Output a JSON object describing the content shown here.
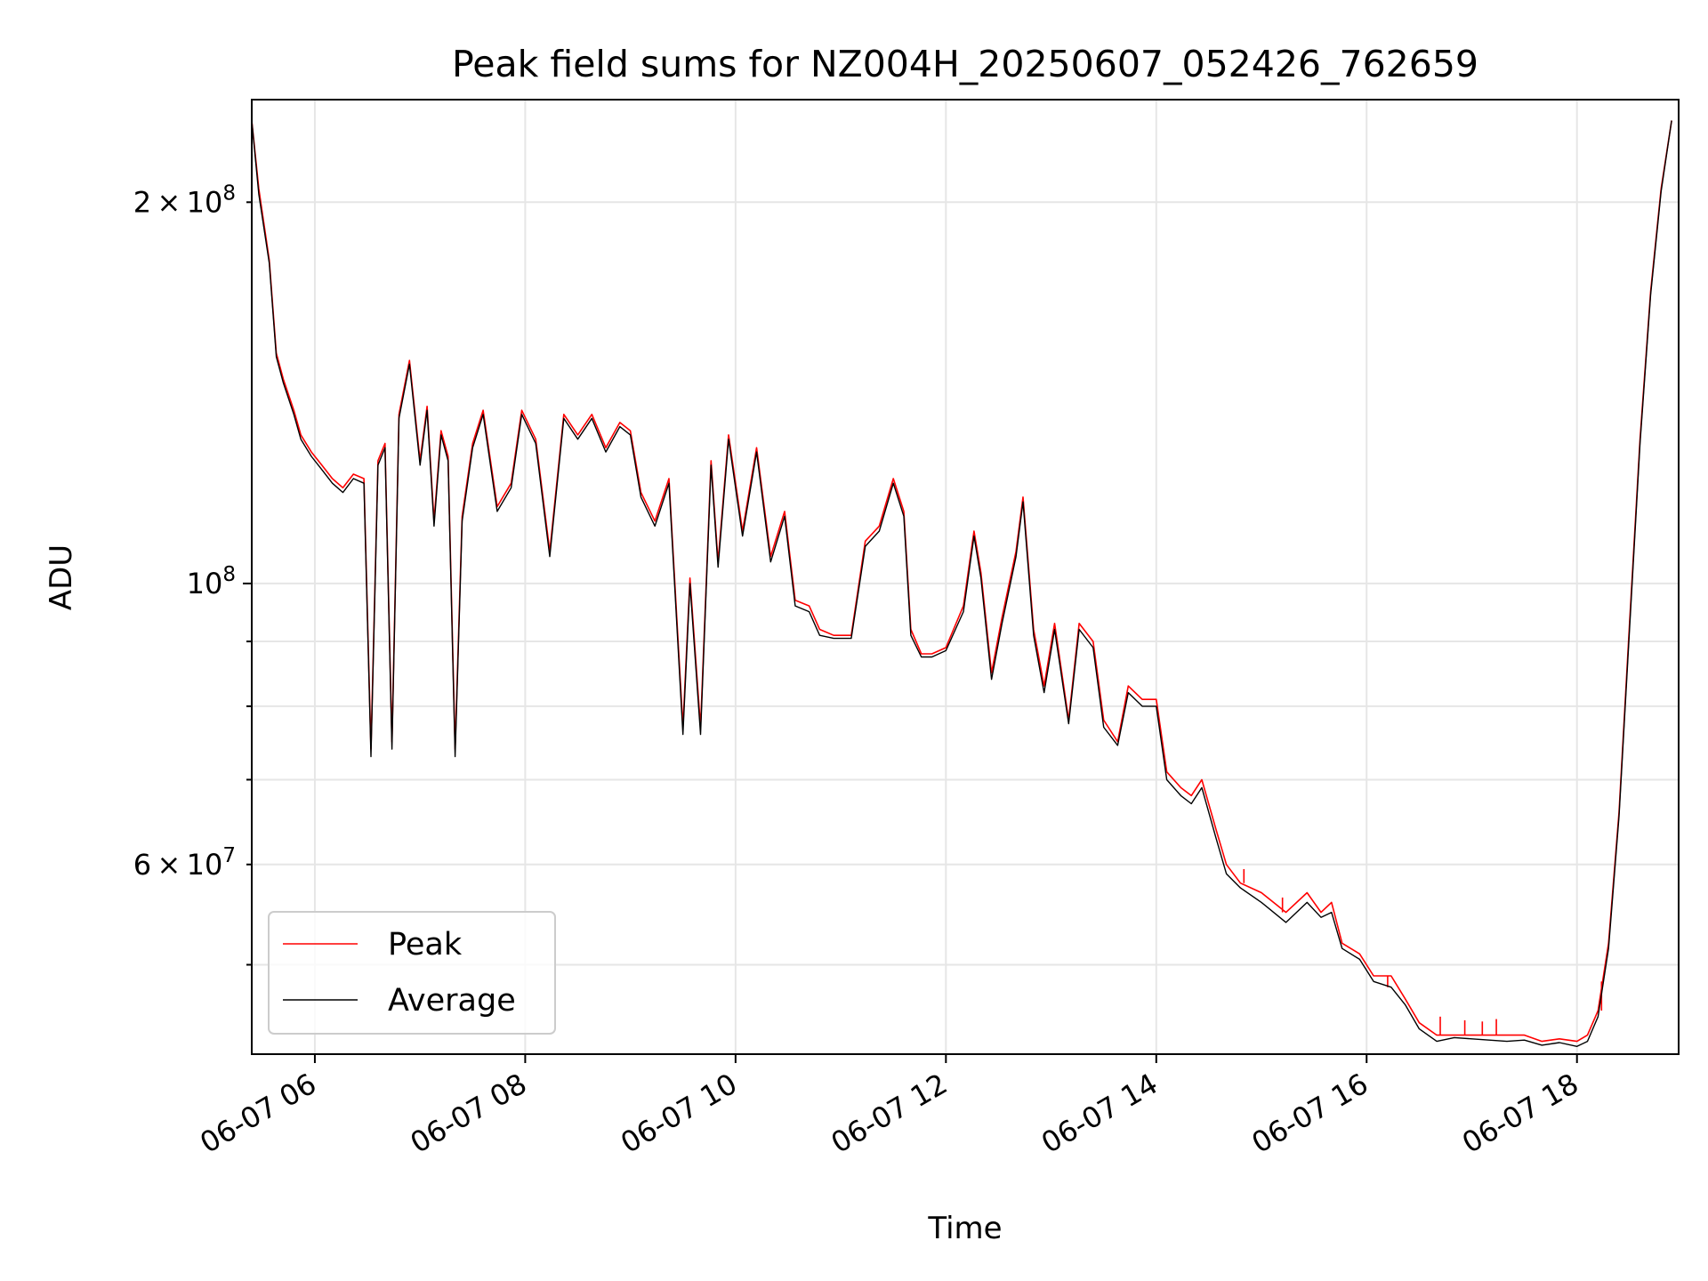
{
  "chart_data": {
    "type": "line",
    "title": "Peak field sums for NZ004H_20250607_052426_762659",
    "xlabel": "Time",
    "ylabel": "ADU",
    "yscale": "log",
    "ylim": [
      42500000,
      241000000
    ],
    "xlim": [
      "2025-06-07 05:24",
      "2025-06-07 18:58"
    ],
    "grid": true,
    "legend_position": "lower-left",
    "x_ticks": [
      {
        "value": "2025-06-07 06:00",
        "label": "06-07 06"
      },
      {
        "value": "2025-06-07 08:00",
        "label": "06-07 08"
      },
      {
        "value": "2025-06-07 10:00",
        "label": "06-07 10"
      },
      {
        "value": "2025-06-07 12:00",
        "label": "06-07 12"
      },
      {
        "value": "2025-06-07 14:00",
        "label": "06-07 14"
      },
      {
        "value": "2025-06-07 16:00",
        "label": "06-07 16"
      },
      {
        "value": "2025-06-07 18:00",
        "label": "06-07 18"
      }
    ],
    "y_ticks_major": [
      {
        "value": 100000000,
        "label": "10^8"
      }
    ],
    "y_ticks_minor": [
      {
        "value": 60000000,
        "label": "6 × 10^7"
      },
      {
        "value": 200000000,
        "label": "2 × 10^8"
      }
    ],
    "y_ticks_minor_unlabeled": [
      50000000,
      70000000,
      80000000,
      90000000
    ],
    "colors": {
      "Peak": "#ff0000",
      "Average": "#000000"
    },
    "series": [
      {
        "name": "Peak",
        "color": "#ff0000",
        "x": [
          "2025-06-07 05:24",
          "2025-06-07 05:28",
          "2025-06-07 05:34",
          "2025-06-07 05:38",
          "2025-06-07 05:42",
          "2025-06-07 05:48",
          "2025-06-07 05:52",
          "2025-06-07 05:58",
          "2025-06-07 06:04",
          "2025-06-07 06:10",
          "2025-06-07 06:16",
          "2025-06-07 06:22",
          "2025-06-07 06:28",
          "2025-06-07 06:32",
          "2025-06-07 06:36",
          "2025-06-07 06:40",
          "2025-06-07 06:44",
          "2025-06-07 06:48",
          "2025-06-07 06:54",
          "2025-06-07 07:00",
          "2025-06-07 07:04",
          "2025-06-07 07:08",
          "2025-06-07 07:12",
          "2025-06-07 07:16",
          "2025-06-07 07:20",
          "2025-06-07 07:24",
          "2025-06-07 07:30",
          "2025-06-07 07:36",
          "2025-06-07 07:44",
          "2025-06-07 07:52",
          "2025-06-07 07:58",
          "2025-06-07 08:06",
          "2025-06-07 08:14",
          "2025-06-07 08:22",
          "2025-06-07 08:30",
          "2025-06-07 08:38",
          "2025-06-07 08:46",
          "2025-06-07 08:54",
          "2025-06-07 09:00",
          "2025-06-07 09:06",
          "2025-06-07 09:14",
          "2025-06-07 09:22",
          "2025-06-07 09:30",
          "2025-06-07 09:34",
          "2025-06-07 09:40",
          "2025-06-07 09:46",
          "2025-06-07 09:50",
          "2025-06-07 09:56",
          "2025-06-07 10:04",
          "2025-06-07 10:12",
          "2025-06-07 10:20",
          "2025-06-07 10:28",
          "2025-06-07 10:34",
          "2025-06-07 10:42",
          "2025-06-07 10:48",
          "2025-06-07 10:56",
          "2025-06-07 11:06",
          "2025-06-07 11:14",
          "2025-06-07 11:22",
          "2025-06-07 11:30",
          "2025-06-07 11:36",
          "2025-06-07 11:40",
          "2025-06-07 11:46",
          "2025-06-07 11:52",
          "2025-06-07 12:00",
          "2025-06-07 12:10",
          "2025-06-07 12:16",
          "2025-06-07 12:20",
          "2025-06-07 12:26",
          "2025-06-07 12:32",
          "2025-06-07 12:40",
          "2025-06-07 12:44",
          "2025-06-07 12:50",
          "2025-06-07 12:56",
          "2025-06-07 13:02",
          "2025-06-07 13:10",
          "2025-06-07 13:16",
          "2025-06-07 13:24",
          "2025-06-07 13:30",
          "2025-06-07 13:38",
          "2025-06-07 13:44",
          "2025-06-07 13:52",
          "2025-06-07 14:00",
          "2025-06-07 14:06",
          "2025-06-07 14:14",
          "2025-06-07 14:20",
          "2025-06-07 14:26",
          "2025-06-07 14:34",
          "2025-06-07 14:40",
          "2025-06-07 14:48",
          "2025-06-07 15:00",
          "2025-06-07 15:14",
          "2025-06-07 15:26",
          "2025-06-07 15:34",
          "2025-06-07 15:40",
          "2025-06-07 15:46",
          "2025-06-07 15:56",
          "2025-06-07 16:04",
          "2025-06-07 16:14",
          "2025-06-07 16:22",
          "2025-06-07 16:30",
          "2025-06-07 16:40",
          "2025-06-07 16:50",
          "2025-06-07 17:00",
          "2025-06-07 17:10",
          "2025-06-07 17:20",
          "2025-06-07 17:30",
          "2025-06-07 17:40",
          "2025-06-07 17:50",
          "2025-06-07 18:00",
          "2025-06-07 18:06",
          "2025-06-07 18:12",
          "2025-06-07 18:18",
          "2025-06-07 18:24",
          "2025-06-07 18:30",
          "2025-06-07 18:36",
          "2025-06-07 18:42",
          "2025-06-07 18:48",
          "2025-06-07 18:54"
        ],
        "values": [
          232000000,
          205000000,
          180000000,
          152000000,
          145000000,
          137000000,
          131000000,
          127000000,
          124000000,
          121000000,
          119000000,
          122000000,
          121000000,
          74000000,
          125000000,
          129000000,
          75000000,
          136000000,
          150000000,
          125000000,
          138000000,
          112000000,
          132000000,
          126000000,
          74000000,
          113000000,
          129000000,
          137000000,
          115000000,
          120000000,
          137000000,
          130000000,
          106000000,
          136000000,
          131000000,
          136000000,
          128000000,
          134000000,
          132000000,
          118000000,
          112000000,
          121000000,
          77000000,
          101000000,
          77000000,
          125000000,
          104000000,
          131000000,
          110000000,
          128000000,
          105000000,
          114000000,
          97000000,
          96000000,
          92000000,
          91000000,
          91000000,
          108000000,
          111000000,
          121000000,
          114000000,
          92000000,
          88000000,
          88000000,
          89000000,
          96000000,
          110000000,
          102000000,
          85000000,
          94000000,
          106000000,
          117000000,
          92000000,
          83000000,
          93000000,
          78000000,
          93000000,
          90000000,
          78000000,
          75000000,
          83000000,
          81000000,
          81000000,
          71000000,
          69000000,
          68000000,
          70000000,
          64000000,
          60000000,
          58000000,
          57000000,
          55000000,
          57000000,
          55000000,
          56000000,
          52000000,
          51000000,
          49000000,
          49000000,
          47000000,
          45000000,
          44000000,
          44000000,
          44000000,
          44000000,
          44000000,
          44000000,
          43500000,
          43700000,
          43500000,
          44000000,
          46000000,
          52000000,
          66000000,
          93000000,
          130000000,
          170000000,
          205000000,
          232000000
        ],
        "spikes": [
          {
            "x": "2025-06-07 14:50",
            "value": 59500000
          },
          {
            "x": "2025-06-07 15:12",
            "value": 56500000
          },
          {
            "x": "2025-06-07 16:12",
            "value": 48000000
          },
          {
            "x": "2025-06-07 16:42",
            "value": 45500000
          },
          {
            "x": "2025-06-07 16:56",
            "value": 45200000
          },
          {
            "x": "2025-06-07 17:06",
            "value": 45100000
          },
          {
            "x": "2025-06-07 17:14",
            "value": 45300000
          },
          {
            "x": "2025-06-07 18:14",
            "value": 48500000
          }
        ]
      },
      {
        "name": "Average",
        "color": "#000000",
        "x": [
          "2025-06-07 05:24",
          "2025-06-07 05:28",
          "2025-06-07 05:34",
          "2025-06-07 05:38",
          "2025-06-07 05:42",
          "2025-06-07 05:48",
          "2025-06-07 05:52",
          "2025-06-07 05:58",
          "2025-06-07 06:04",
          "2025-06-07 06:10",
          "2025-06-07 06:16",
          "2025-06-07 06:22",
          "2025-06-07 06:28",
          "2025-06-07 06:32",
          "2025-06-07 06:36",
          "2025-06-07 06:40",
          "2025-06-07 06:44",
          "2025-06-07 06:48",
          "2025-06-07 06:54",
          "2025-06-07 07:00",
          "2025-06-07 07:04",
          "2025-06-07 07:08",
          "2025-06-07 07:12",
          "2025-06-07 07:16",
          "2025-06-07 07:20",
          "2025-06-07 07:24",
          "2025-06-07 07:30",
          "2025-06-07 07:36",
          "2025-06-07 07:44",
          "2025-06-07 07:52",
          "2025-06-07 07:58",
          "2025-06-07 08:06",
          "2025-06-07 08:14",
          "2025-06-07 08:22",
          "2025-06-07 08:30",
          "2025-06-07 08:38",
          "2025-06-07 08:46",
          "2025-06-07 08:54",
          "2025-06-07 09:00",
          "2025-06-07 09:06",
          "2025-06-07 09:14",
          "2025-06-07 09:22",
          "2025-06-07 09:30",
          "2025-06-07 09:34",
          "2025-06-07 09:40",
          "2025-06-07 09:46",
          "2025-06-07 09:50",
          "2025-06-07 09:56",
          "2025-06-07 10:04",
          "2025-06-07 10:12",
          "2025-06-07 10:20",
          "2025-06-07 10:28",
          "2025-06-07 10:34",
          "2025-06-07 10:42",
          "2025-06-07 10:48",
          "2025-06-07 10:56",
          "2025-06-07 11:06",
          "2025-06-07 11:14",
          "2025-06-07 11:22",
          "2025-06-07 11:30",
          "2025-06-07 11:36",
          "2025-06-07 11:40",
          "2025-06-07 11:46",
          "2025-06-07 11:52",
          "2025-06-07 12:00",
          "2025-06-07 12:10",
          "2025-06-07 12:16",
          "2025-06-07 12:20",
          "2025-06-07 12:26",
          "2025-06-07 12:32",
          "2025-06-07 12:40",
          "2025-06-07 12:44",
          "2025-06-07 12:50",
          "2025-06-07 12:56",
          "2025-06-07 13:02",
          "2025-06-07 13:10",
          "2025-06-07 13:16",
          "2025-06-07 13:24",
          "2025-06-07 13:30",
          "2025-06-07 13:38",
          "2025-06-07 13:44",
          "2025-06-07 13:52",
          "2025-06-07 14:00",
          "2025-06-07 14:06",
          "2025-06-07 14:14",
          "2025-06-07 14:20",
          "2025-06-07 14:26",
          "2025-06-07 14:34",
          "2025-06-07 14:40",
          "2025-06-07 14:48",
          "2025-06-07 15:00",
          "2025-06-07 15:14",
          "2025-06-07 15:26",
          "2025-06-07 15:34",
          "2025-06-07 15:40",
          "2025-06-07 15:46",
          "2025-06-07 15:56",
          "2025-06-07 16:04",
          "2025-06-07 16:14",
          "2025-06-07 16:22",
          "2025-06-07 16:30",
          "2025-06-07 16:40",
          "2025-06-07 16:50",
          "2025-06-07 17:00",
          "2025-06-07 17:10",
          "2025-06-07 17:20",
          "2025-06-07 17:30",
          "2025-06-07 17:40",
          "2025-06-07 17:50",
          "2025-06-07 18:00",
          "2025-06-07 18:06",
          "2025-06-07 18:12",
          "2025-06-07 18:18",
          "2025-06-07 18:24",
          "2025-06-07 18:30",
          "2025-06-07 18:36",
          "2025-06-07 18:42",
          "2025-06-07 18:48",
          "2025-06-07 18:54"
        ],
        "values": [
          232000000,
          203000000,
          179000000,
          151000000,
          144000000,
          136000000,
          130000000,
          126000000,
          123000000,
          120000000,
          118000000,
          121000000,
          120000000,
          73000000,
          124000000,
          128000000,
          74000000,
          135000000,
          149000000,
          124000000,
          137000000,
          111000000,
          131000000,
          125000000,
          73000000,
          112000000,
          128000000,
          136000000,
          114000000,
          119000000,
          136000000,
          129000000,
          105000000,
          135000000,
          130000000,
          135000000,
          127000000,
          133000000,
          131000000,
          117000000,
          111000000,
          120000000,
          76000000,
          100000000,
          76000000,
          124000000,
          103000000,
          130000000,
          109000000,
          127000000,
          104000000,
          113000000,
          96000000,
          95000000,
          91000000,
          90500000,
          90500000,
          107000000,
          110000000,
          120000000,
          113000000,
          91000000,
          87500000,
          87500000,
          88500000,
          95000000,
          109000000,
          101000000,
          84000000,
          93000000,
          105000000,
          116000000,
          91000000,
          82000000,
          92000000,
          77500000,
          92000000,
          89000000,
          77000000,
          74500000,
          82000000,
          80000000,
          80000000,
          70000000,
          68000000,
          67000000,
          69000000,
          63000000,
          59000000,
          57500000,
          56000000,
          54000000,
          56000000,
          54500000,
          55000000,
          51500000,
          50500000,
          48500000,
          48000000,
          46500000,
          44500000,
          43500000,
          43800000,
          43700000,
          43600000,
          43500000,
          43600000,
          43200000,
          43400000,
          43100000,
          43500000,
          45500000,
          51500000,
          65500000,
          92000000,
          129000000,
          169000000,
          204000000,
          232000000
        ]
      }
    ]
  }
}
